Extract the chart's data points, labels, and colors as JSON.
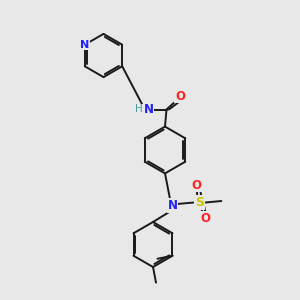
{
  "bg_color": "#e8e8e8",
  "bond_color": "#1a1a1a",
  "N_color": "#2020ff",
  "O_color": "#ff2020",
  "S_color": "#c8c800",
  "H_color": "#4a9a9a",
  "figsize": [
    3.0,
    3.0
  ],
  "dpi": 100,
  "xlim": [
    0,
    10
  ],
  "ylim": [
    0,
    10
  ]
}
